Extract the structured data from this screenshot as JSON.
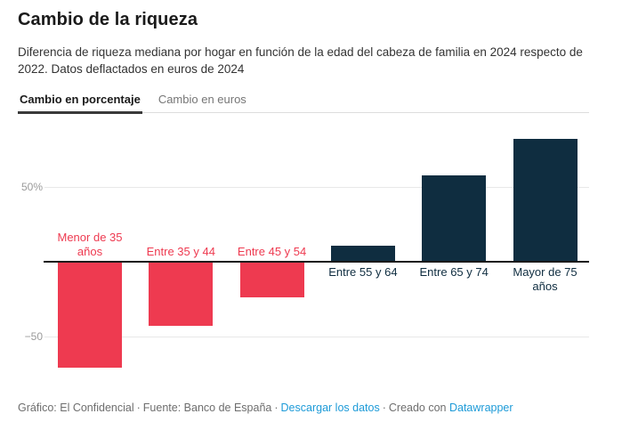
{
  "header": {
    "tabs": [
      {
        "label": "Cambio en porcentaje",
        "active": true
      },
      {
        "label": "Cambio en euros",
        "active": false
      }
    ]
  },
  "chart_data": {
    "type": "bar",
    "title": "Cambio de la riqueza",
    "description": "Diferencia de riqueza mediana por hogar en función de la edad del cabeza de familia en 2024 respecto de 2022. Datos deflactados en euros de 2024",
    "categories": [
      "Menor de 35\naños",
      "Entre 35 y 44",
      "Entre 45 y 54",
      "Entre 55 y 64",
      "Entre 65 y 74",
      "Mayor de 75\naños"
    ],
    "values": [
      -70,
      -42,
      -23,
      11,
      58,
      82
    ],
    "unit": "%",
    "ylim": [
      -85,
      90
    ],
    "grid": "horizontal",
    "yticks": [
      {
        "label": "50%",
        "value": 50
      },
      {
        "label": "−50",
        "value": -50
      }
    ],
    "negative_color": "#ee3a50",
    "positive_color": "#0f2d40",
    "baseline_color": "#1a1a1a",
    "legend": "none"
  },
  "footer": {
    "credit": "Gráfico: El Confidencial",
    "source": "Fuente: Banco de España",
    "download_link": "Descargar los datos",
    "created_with": "Creado con",
    "datawrapper_link": "Datawrapper",
    "separator": "·"
  }
}
